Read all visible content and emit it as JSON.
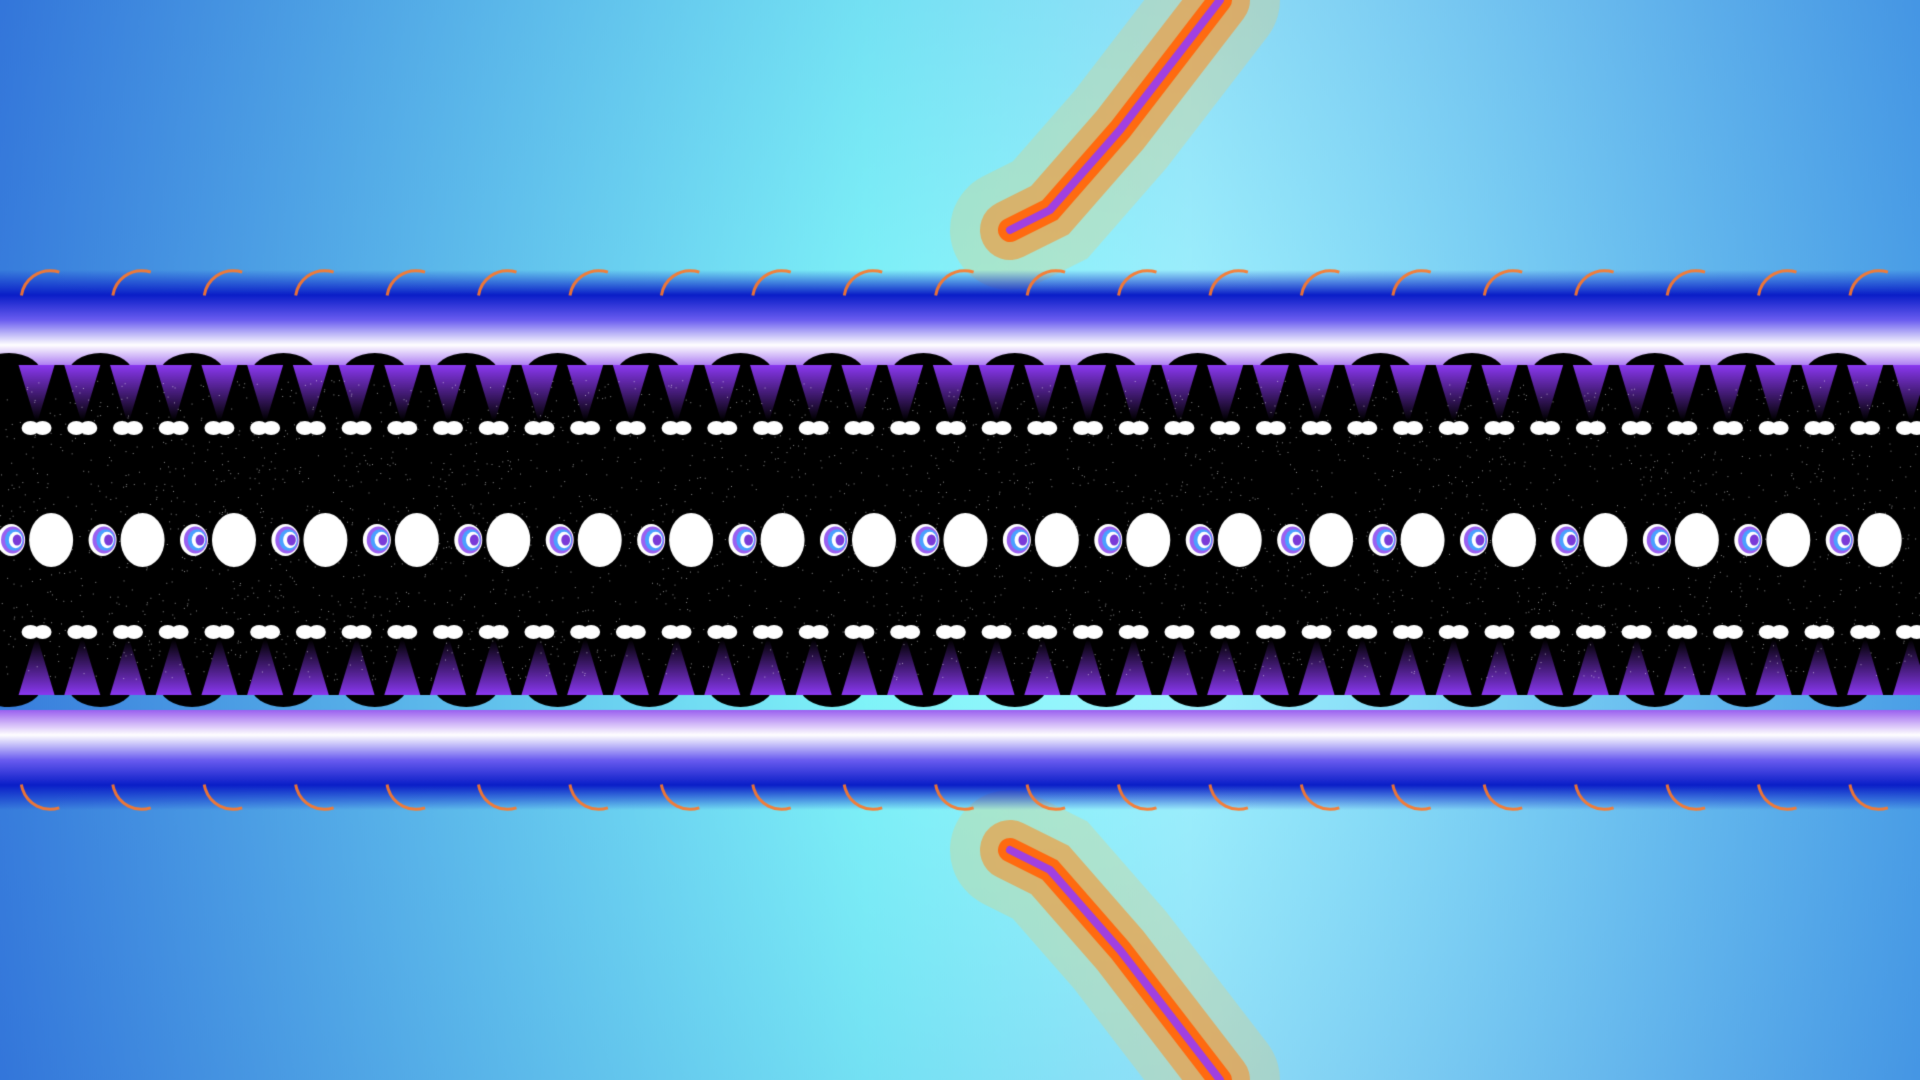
{
  "image": {
    "kind": "fractal-render",
    "palette": {
      "sky_outer": "#3b82e0",
      "sky_inner": "#7ff8f8",
      "orange_band": "#ff7a14",
      "band_blue": "#0a1ec8",
      "band_violet": "#8a38f0",
      "band_white": "#ffffff",
      "band_black": "#000000"
    },
    "repeat_count": 21
  }
}
